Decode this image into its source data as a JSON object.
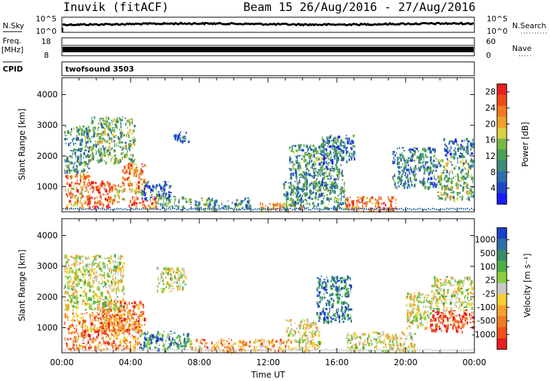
{
  "header": {
    "station": "Inuvik (fitACF)",
    "beam_label": "Beam 15 26/Aug/2016 - 27/Aug/2016"
  },
  "summary_panels": {
    "nsky": {
      "label": "N.Sky",
      "left_ticks": [
        "10^5",
        "10^0"
      ],
      "right_ticks": [
        "10^5",
        "10^0"
      ],
      "right_label": "N.Search"
    },
    "freq": {
      "label_line1": "Freq.",
      "label_line2": "[MHz]",
      "left_ticks": [
        "18",
        "8"
      ],
      "right_ticks": [
        "60",
        "0"
      ],
      "right_label": "Nave"
    },
    "cpid": {
      "label": "CPID",
      "program": "twofsound 3503"
    }
  },
  "chart_data": [
    {
      "type": "heatmap",
      "name": "power",
      "xlabel": "",
      "ylabel": "Slant Range [km]",
      "x_ticks": [
        "00:00",
        "04:00",
        "08:00",
        "12:00",
        "16:00",
        "20:00",
        "00:00"
      ],
      "x_range_hours": [
        0,
        24
      ],
      "y_ticks": [
        1000,
        2000,
        3000,
        4000
      ],
      "ylim": [
        180,
        4550
      ],
      "colorbar": {
        "label": "Power [dB]",
        "ticks": [
          "4",
          "8",
          "12",
          "16",
          "20",
          "24",
          "28"
        ],
        "colors": [
          "#1a1aff",
          "#1f45c8",
          "#2d6eb0",
          "#3c8a7a",
          "#4aa055",
          "#79b844",
          "#d8d040",
          "#f0a02e",
          "#f07a22",
          "#f04a18",
          "#e82020"
        ]
      },
      "regions": [
        {
          "t": [
            0.2,
            1.6
          ],
          "r": [
            300,
            1500
          ],
          "level": 0.75
        },
        {
          "t": [
            1.5,
            2.8
          ],
          "r": [
            300,
            1200
          ],
          "level": 0.85
        },
        {
          "t": [
            2.6,
            3.6
          ],
          "r": [
            500,
            1100
          ],
          "level": 0.7
        },
        {
          "t": [
            3.5,
            4.8
          ],
          "r": [
            800,
            1800
          ],
          "level": 0.75
        },
        {
          "t": [
            0.1,
            1.6
          ],
          "r": [
            1500,
            3000
          ],
          "level": 0.35
        },
        {
          "t": [
            1.6,
            4.2
          ],
          "r": [
            1800,
            3300
          ],
          "level": 0.45
        },
        {
          "t": [
            3.8,
            5.5
          ],
          "r": [
            300,
            700
          ],
          "level": 0.85
        },
        {
          "t": [
            4.6,
            6.3
          ],
          "r": [
            600,
            1200
          ],
          "level": 0.25
        },
        {
          "t": [
            5.5,
            7.5
          ],
          "r": [
            350,
            700
          ],
          "level": 0.4
        },
        {
          "t": [
            6.5,
            7.5
          ],
          "r": [
            2500,
            2800
          ],
          "level": 0.2
        },
        {
          "t": [
            7.7,
            11.0
          ],
          "r": [
            300,
            650
          ],
          "level": 0.35
        },
        {
          "t": [
            11.5,
            14.0
          ],
          "r": [
            250,
            500
          ],
          "level": 0.7
        },
        {
          "t": [
            12.8,
            16.5
          ],
          "r": [
            300,
            1200
          ],
          "level": 0.35
        },
        {
          "t": [
            13.2,
            16.3
          ],
          "r": [
            1000,
            2400
          ],
          "level": 0.35
        },
        {
          "t": [
            15.0,
            17.0
          ],
          "r": [
            1800,
            2700
          ],
          "level": 0.25
        },
        {
          "t": [
            16.5,
            19.5
          ],
          "r": [
            250,
            700
          ],
          "level": 0.8
        },
        {
          "t": [
            19.2,
            21.8
          ],
          "r": [
            1000,
            2300
          ],
          "level": 0.3
        },
        {
          "t": [
            21.8,
            23.9
          ],
          "r": [
            600,
            1900
          ],
          "level": 0.45
        },
        {
          "t": [
            22.2,
            23.9
          ],
          "r": [
            1900,
            2600
          ],
          "level": 0.25
        }
      ]
    },
    {
      "type": "heatmap",
      "name": "velocity",
      "xlabel": "Time UT",
      "ylabel": "Slant Range [km]",
      "x_ticks": [
        "00:00",
        "04:00",
        "08:00",
        "12:00",
        "16:00",
        "20:00",
        "00:00"
      ],
      "x_range_hours": [
        0,
        24
      ],
      "y_ticks": [
        1000,
        2000,
        3000,
        4000
      ],
      "ylim": [
        180,
        4550
      ],
      "colorbar": {
        "label": "Velocity [m s⁻¹]",
        "ticks": [
          "1000",
          "500",
          "100",
          "25",
          "-25",
          "-100",
          "-500",
          "-1000"
        ],
        "colors": [
          "#1a3fc8",
          "#2f6ea8",
          "#3a8a6a",
          "#4ab044",
          "#8ccc3c",
          "#c8c8c8",
          "#f4d030",
          "#f4a22c",
          "#f07a22",
          "#f0501a",
          "#e82020"
        ]
      },
      "regions": [
        {
          "t": [
            0.1,
            4.5
          ],
          "r": [
            300,
            1500
          ],
          "level": 0.75
        },
        {
          "t": [
            2.0,
            4.8
          ],
          "r": [
            900,
            1900
          ],
          "level": 0.8
        },
        {
          "t": [
            0.1,
            3.6
          ],
          "r": [
            1600,
            3400
          ],
          "level": 0.5
        },
        {
          "t": [
            4.5,
            7.5
          ],
          "r": [
            300,
            900
          ],
          "level": 0.25
        },
        {
          "t": [
            5.5,
            7.2
          ],
          "r": [
            2200,
            3000
          ],
          "level": 0.5
        },
        {
          "t": [
            7.5,
            13.0
          ],
          "r": [
            250,
            650
          ],
          "level": 0.7
        },
        {
          "t": [
            13.0,
            15.0
          ],
          "r": [
            250,
            1300
          ],
          "level": 0.55
        },
        {
          "t": [
            14.8,
            16.8
          ],
          "r": [
            1200,
            2700
          ],
          "level": 0.15
        },
        {
          "t": [
            16.5,
            20.5
          ],
          "r": [
            250,
            900
          ],
          "level": 0.5
        },
        {
          "t": [
            20.0,
            21.5
          ],
          "r": [
            1000,
            2200
          ],
          "level": 0.5
        },
        {
          "t": [
            21.4,
            23.9
          ],
          "r": [
            900,
            1600
          ],
          "level": 0.9
        },
        {
          "t": [
            21.5,
            23.9
          ],
          "r": [
            1600,
            2700
          ],
          "level": 0.5
        }
      ]
    }
  ]
}
